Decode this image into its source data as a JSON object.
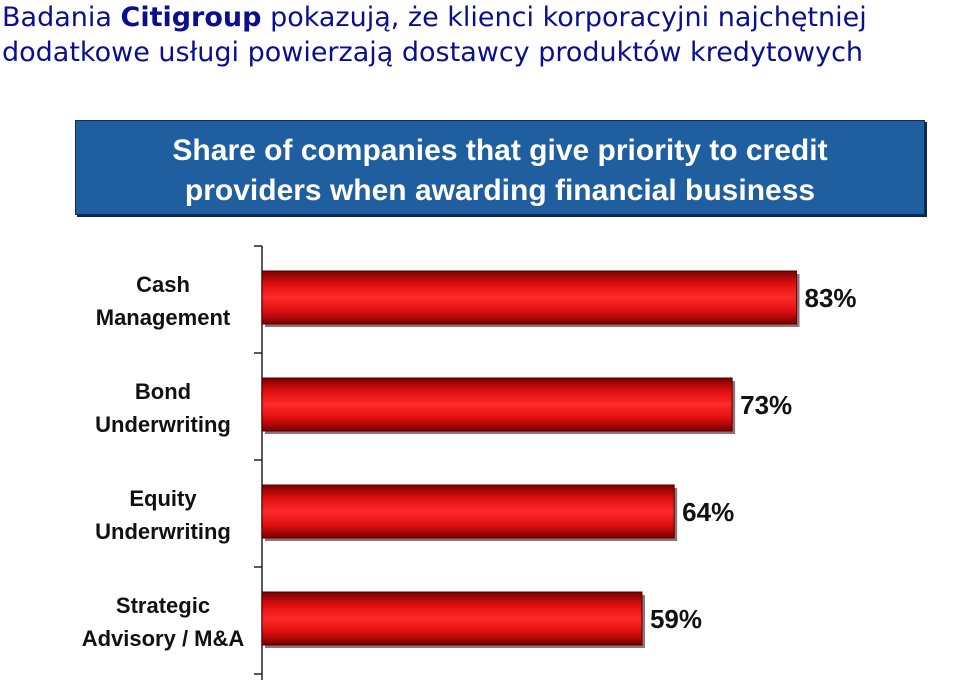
{
  "headline": {
    "prefix": "Badania ",
    "brand": "Citigroup",
    "rest_line1": " pokazują, że klienci korporacyjni najchętniej",
    "line2": "dodatkowe usługi powierzają dostawcy produktów kredytowych"
  },
  "chart_data": {
    "type": "bar",
    "orientation": "horizontal",
    "title_lines": [
      "Share of companies that give priority to credit",
      "providers when awarding financial business"
    ],
    "categories": [
      [
        "Cash",
        "Management"
      ],
      [
        "Bond",
        "Underwriting"
      ],
      [
        "Equity",
        "Underwriting"
      ],
      [
        "Strategic",
        "Advisory / M&A"
      ]
    ],
    "values": [
      83,
      73,
      64,
      59
    ],
    "value_labels": [
      "83%",
      "73%",
      "64%",
      "59%"
    ],
    "xlim": [
      0,
      100
    ],
    "grid": false,
    "colors": {
      "bar": "#e01010",
      "bar_dark": "#7a0000",
      "title_bg": "#1f5fa0"
    }
  }
}
